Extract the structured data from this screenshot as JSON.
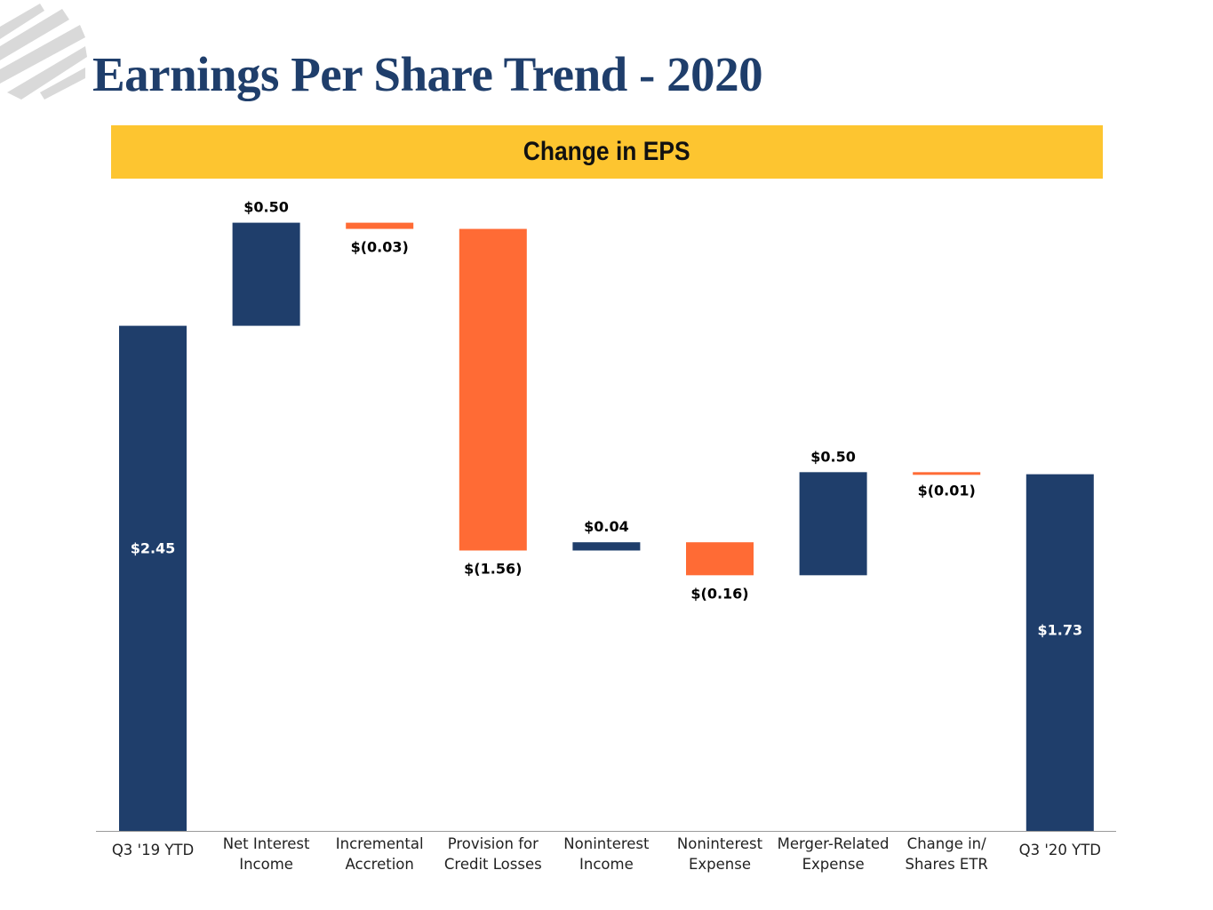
{
  "header": {
    "title": "Earnings Per Share Trend - 2020",
    "subtitle": "Change in EPS"
  },
  "colors": {
    "title": "#1f3e6b",
    "banner": "#fdc530",
    "increase": "#1f3e6b",
    "decrease": "#ff6b35",
    "total": "#1f3e6b",
    "axis": "#9a9a9a",
    "logo": "#d9d9d9"
  },
  "chart_data": {
    "type": "bar",
    "subtype": "waterfall",
    "title": "Change in EPS",
    "xlabel": "",
    "ylabel": "",
    "ylim": [
      0,
      3.0
    ],
    "grid": false,
    "legend": "none",
    "categories": [
      [
        "Q3 '19 YTD"
      ],
      [
        "Net Interest",
        "Income"
      ],
      [
        "Incremental",
        "Accretion"
      ],
      [
        "Provision for",
        "Credit Losses"
      ],
      [
        "Noninterest",
        "Income"
      ],
      [
        "Noninterest",
        "Expense"
      ],
      [
        "Merger-Related",
        "Expense"
      ],
      [
        "Change in/",
        "Shares ETR"
      ],
      [
        "Q3 '20 YTD"
      ]
    ],
    "steps": [
      {
        "kind": "total",
        "value": 2.45,
        "label": "$2.45"
      },
      {
        "kind": "delta",
        "value": 0.5,
        "label": "$0.50"
      },
      {
        "kind": "delta",
        "value": -0.03,
        "label": "$(0.03)"
      },
      {
        "kind": "delta",
        "value": -1.56,
        "label": "$(1.56)"
      },
      {
        "kind": "delta",
        "value": 0.04,
        "label": "$0.04"
      },
      {
        "kind": "delta",
        "value": -0.16,
        "label": "$(0.16)"
      },
      {
        "kind": "delta",
        "value": 0.5,
        "label": "$0.50"
      },
      {
        "kind": "delta",
        "value": -0.01,
        "label": "$(0.01)"
      },
      {
        "kind": "total",
        "value": 1.73,
        "label": "$1.73"
      }
    ]
  }
}
